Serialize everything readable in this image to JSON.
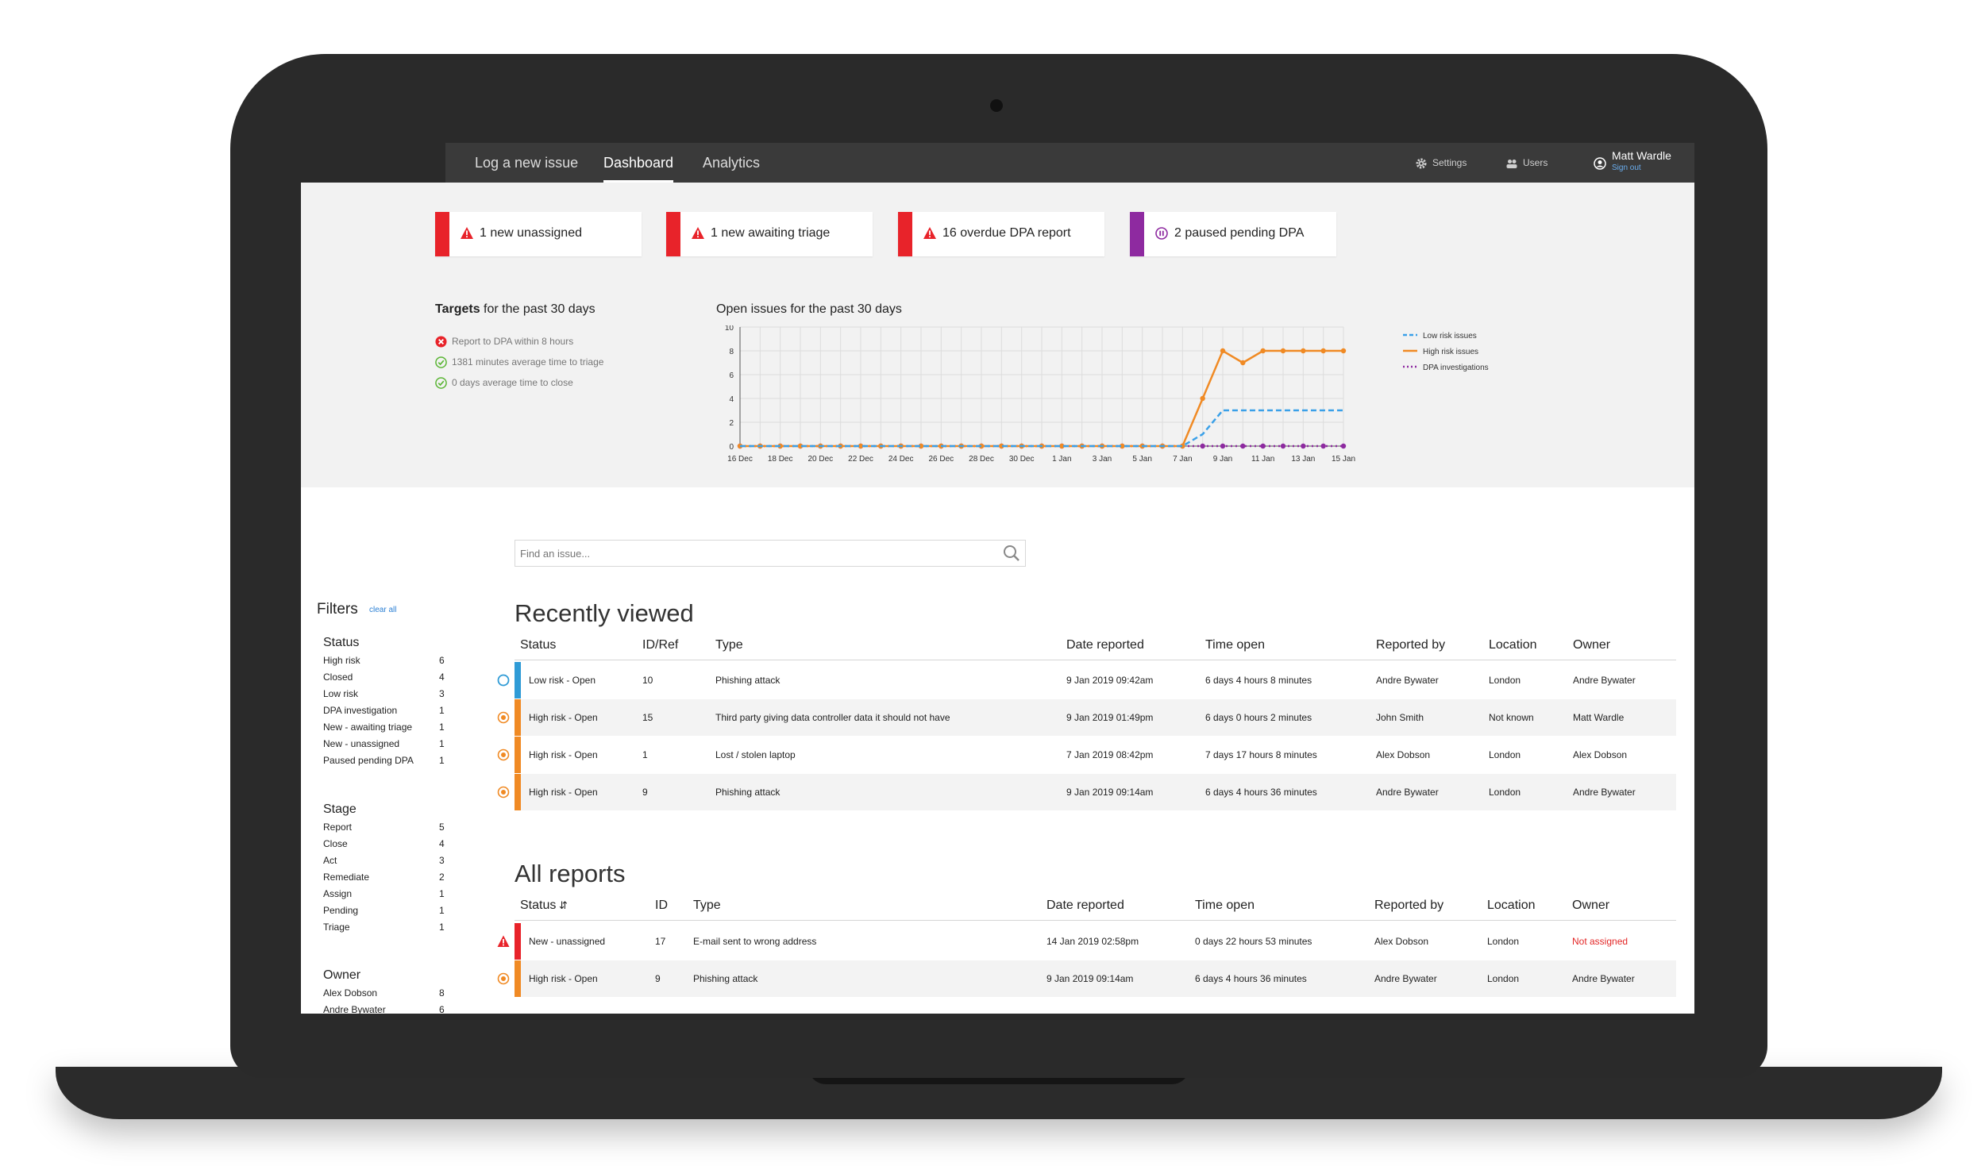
{
  "nav": {
    "tabs": [
      {
        "label": "Log a new issue"
      },
      {
        "label": "Dashboard"
      },
      {
        "label": "Analytics"
      }
    ],
    "settings_label": "Settings",
    "users_label": "Users",
    "user_name": "Matt Wardle",
    "sign_out_label": "Sign out"
  },
  "alerts": [
    {
      "text": "1 new unassigned",
      "color": "#e8232a",
      "icon": "warning-icon"
    },
    {
      "text": "1 new awaiting triage",
      "color": "#e8232a",
      "icon": "warning-icon"
    },
    {
      "text": "16 overdue DPA report",
      "color": "#e8232a",
      "icon": "warning-icon"
    },
    {
      "text": "2 paused pending DPA",
      "color": "#8e2aa0",
      "icon": "pause-icon"
    }
  ],
  "targets": {
    "title_bold": "Targets",
    "title_rest": " for the past 30 days",
    "items": [
      {
        "text": "Report to DPA within 8 hours",
        "status": "fail"
      },
      {
        "text": "1381 minutes average time to triage",
        "status": "pass"
      },
      {
        "text": "0 days average time to close",
        "status": "pass"
      }
    ]
  },
  "chart_data": {
    "type": "line",
    "title": "Open issues for the past 30 days",
    "x": [
      "16 Dec",
      "17 Dec",
      "18 Dec",
      "19 Dec",
      "20 Dec",
      "21 Dec",
      "22 Dec",
      "23 Dec",
      "24 Dec",
      "25 Dec",
      "26 Dec",
      "27 Dec",
      "28 Dec",
      "29 Dec",
      "30 Dec",
      "31 Dec",
      "1 Jan",
      "2 Jan",
      "3 Jan",
      "4 Jan",
      "5 Jan",
      "6 Jan",
      "7 Jan",
      "8 Jan",
      "9 Jan",
      "10 Jan",
      "11 Jan",
      "12 Jan",
      "13 Jan",
      "14 Jan",
      "15 Jan"
    ],
    "x_tick_labels": [
      "16 Dec",
      "18 Dec",
      "20 Dec",
      "22 Dec",
      "24 Dec",
      "26 Dec",
      "28 Dec",
      "30 Dec",
      "1 Jan",
      "3 Jan",
      "5 Jan",
      "7 Jan",
      "9 Jan",
      "11 Jan",
      "13 Jan",
      "15 Jan"
    ],
    "y_ticks": [
      0,
      2,
      4,
      6,
      8,
      10
    ],
    "ylim": [
      0,
      10
    ],
    "grid": true,
    "legend_position": "right",
    "series": [
      {
        "name": "Low risk issues",
        "color": "#3aa0e8",
        "style": "dashed",
        "values": [
          0,
          0,
          0,
          0,
          0,
          0,
          0,
          0,
          0,
          0,
          0,
          0,
          0,
          0,
          0,
          0,
          0,
          0,
          0,
          0,
          0,
          0,
          0,
          1,
          3,
          3,
          3,
          3,
          3,
          3,
          3
        ]
      },
      {
        "name": "High risk issues",
        "color": "#f08a24",
        "style": "solid",
        "values": [
          0,
          0,
          0,
          0,
          0,
          0,
          0,
          0,
          0,
          0,
          0,
          0,
          0,
          0,
          0,
          0,
          0,
          0,
          0,
          0,
          0,
          0,
          0,
          4,
          8,
          7,
          8,
          8,
          8,
          8,
          8
        ]
      },
      {
        "name": "DPA investigations",
        "color": "#8e2aa0",
        "style": "dotted",
        "values": [
          0,
          0,
          0,
          0,
          0,
          0,
          0,
          0,
          0,
          0,
          0,
          0,
          0,
          0,
          0,
          0,
          0,
          0,
          0,
          0,
          0,
          0,
          0,
          0,
          0,
          0,
          0,
          0,
          0,
          0,
          0
        ]
      }
    ]
  },
  "search": {
    "placeholder": "Find an issue..."
  },
  "filters": {
    "title": "Filters",
    "clear_label": "clear all",
    "status": {
      "title": "Status",
      "items": [
        {
          "label": "High risk",
          "count": "6"
        },
        {
          "label": "Closed",
          "count": "4"
        },
        {
          "label": "Low risk",
          "count": "3"
        },
        {
          "label": "DPA investigation",
          "count": "1"
        },
        {
          "label": "New - awaiting triage",
          "count": "1"
        },
        {
          "label": "New - unassigned",
          "count": "1"
        },
        {
          "label": "Paused pending DPA",
          "count": "1"
        }
      ]
    },
    "stage": {
      "title": "Stage",
      "items": [
        {
          "label": "Report",
          "count": "5"
        },
        {
          "label": "Close",
          "count": "4"
        },
        {
          "label": "Act",
          "count": "3"
        },
        {
          "label": "Remediate",
          "count": "2"
        },
        {
          "label": "Assign",
          "count": "1"
        },
        {
          "label": "Pending",
          "count": "1"
        },
        {
          "label": "Triage",
          "count": "1"
        }
      ]
    },
    "owner": {
      "title": "Owner",
      "items": [
        {
          "label": "Alex Dobson",
          "count": "8"
        },
        {
          "label": "Andre Bywater",
          "count": "6"
        }
      ]
    }
  },
  "recently_viewed": {
    "title": "Recently viewed",
    "columns": [
      "Status",
      "ID/Ref",
      "Type",
      "Date reported",
      "Time open",
      "Reported by",
      "Location",
      "Owner"
    ],
    "rows": [
      {
        "status": "Low risk - Open",
        "id": "10",
        "type": "Phishing attack",
        "date": "9 Jan 2019 09:42am",
        "time_open": "6 days 4 hours 8 minutes",
        "reported_by": "Andre Bywater",
        "location": "London",
        "owner": "Andre Bywater",
        "color": "#2f9bd6"
      },
      {
        "status": "High risk - Open",
        "id": "15",
        "type": "Third party giving data controller data it should not have",
        "date": "9 Jan 2019 01:49pm",
        "time_open": "6 days 0 hours 2 minutes",
        "reported_by": "John Smith",
        "location": "Not known",
        "owner": "Matt Wardle",
        "color": "#f08a24"
      },
      {
        "status": "High risk - Open",
        "id": "1",
        "type": "Lost / stolen laptop",
        "date": "7 Jan 2019 08:42pm",
        "time_open": "7 days 17 hours 8 minutes",
        "reported_by": "Alex Dobson",
        "location": "London",
        "owner": "Alex Dobson",
        "color": "#f08a24"
      },
      {
        "status": "High risk - Open",
        "id": "9",
        "type": "Phishing attack",
        "date": "9 Jan 2019 09:14am",
        "time_open": "6 days 4 hours 36 minutes",
        "reported_by": "Andre Bywater",
        "location": "London",
        "owner": "Andre Bywater",
        "color": "#f08a24"
      }
    ]
  },
  "all_reports": {
    "title": "All reports",
    "columns": [
      "Status",
      "ID",
      "Type",
      "Date reported",
      "Time open",
      "Reported by",
      "Location",
      "Owner"
    ],
    "rows": [
      {
        "status": "New - unassigned",
        "id": "17",
        "type": "E-mail sent to wrong address",
        "date": "14 Jan 2019 02:58pm",
        "time_open": "0 days 22 hours 53 minutes",
        "reported_by": "Alex Dobson",
        "location": "London",
        "owner": "Not assigned",
        "color": "#e8232a"
      },
      {
        "status": "High risk - Open",
        "id": "9",
        "type": "Phishing attack",
        "date": "9 Jan 2019 09:14am",
        "time_open": "6 days 4 hours 36 minutes",
        "reported_by": "Andre Bywater",
        "location": "London",
        "owner": "Andre Bywater",
        "color": "#f08a24"
      }
    ]
  }
}
